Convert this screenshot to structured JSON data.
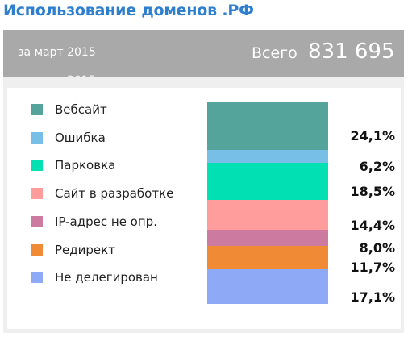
{
  "title": "Использование доменов .РФ",
  "header": {
    "period": "за март 2015",
    "total_label": "Всего",
    "total_value": "831 695"
  },
  "chart_data": {
    "type": "bar",
    "stacked": true,
    "unit": "%",
    "categories": [
      "Вебсайт",
      "Ошибка",
      "Парковка",
      "Сайт в разработке",
      "IP-адрес не опр.",
      "Редирект",
      "Не делегирован"
    ],
    "values": [
      24.1,
      6.2,
      18.5,
      14.4,
      8.0,
      11.7,
      17.1
    ],
    "labels": [
      "24,1%",
      "6,2%",
      "18,5%",
      "14,4%",
      "8,0%",
      "11,7%",
      "17,1%"
    ],
    "colors": [
      "#55a49c",
      "#78bfe8",
      "#00e0b2",
      "#ff9c9c",
      "#cc7aa0",
      "#f18a35",
      "#8eaaf7"
    ],
    "legend_position": "left"
  }
}
